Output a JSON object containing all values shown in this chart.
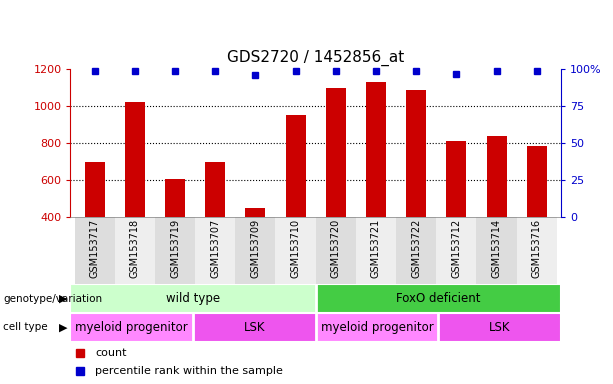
{
  "title": "GDS2720 / 1452856_at",
  "samples": [
    "GSM153717",
    "GSM153718",
    "GSM153719",
    "GSM153707",
    "GSM153709",
    "GSM153710",
    "GSM153720",
    "GSM153721",
    "GSM153722",
    "GSM153712",
    "GSM153714",
    "GSM153716"
  ],
  "counts": [
    700,
    1020,
    607,
    700,
    450,
    950,
    1100,
    1130,
    1085,
    810,
    840,
    785
  ],
  "percentiles": [
    99,
    99,
    99,
    99,
    96,
    99,
    99,
    99,
    99,
    97,
    99,
    99
  ],
  "ylim_left": [
    400,
    1200
  ],
  "ylim_right": [
    0,
    100
  ],
  "bar_color": "#cc0000",
  "dot_color": "#0000cc",
  "genotype_groups": [
    {
      "label": "wild type",
      "start": 0,
      "end": 5,
      "color": "#ccffcc"
    },
    {
      "label": "FoxO deficient",
      "start": 6,
      "end": 11,
      "color": "#44cc44"
    }
  ],
  "celltype_groups": [
    {
      "label": "myeloid progenitor",
      "start": 0,
      "end": 2,
      "color": "#ff88ff"
    },
    {
      "label": "LSK",
      "start": 3,
      "end": 5,
      "color": "#ee55ee"
    },
    {
      "label": "myeloid progenitor",
      "start": 6,
      "end": 8,
      "color": "#ff88ff"
    },
    {
      "label": "LSK",
      "start": 9,
      "end": 11,
      "color": "#ee55ee"
    }
  ],
  "left_yticks": [
    400,
    600,
    800,
    1000,
    1200
  ],
  "right_yticks": [
    0,
    25,
    50,
    75,
    100
  ],
  "right_yticklabels": [
    "0",
    "25",
    "50",
    "75",
    "100%"
  ],
  "xtick_bg_even": "#dddddd",
  "xtick_bg_odd": "#eeeeee"
}
